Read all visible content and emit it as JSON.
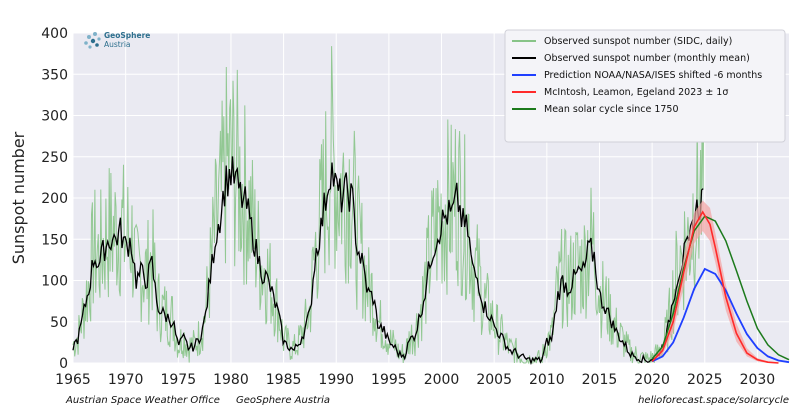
{
  "colors": {
    "background": "#eaeaf2",
    "grid": "#ffffff",
    "daily": "#88c488",
    "monthly": "#000000",
    "noaa": "#1f3fff",
    "mcintosh": "#ff2a2a",
    "mcintosh_band": "#f4a3a3",
    "mean": "#1c7a1c"
  },
  "logo": {
    "icon": "geosphere-logo-icon",
    "line1": "GeoSphere",
    "line2": "Austria"
  },
  "footer": {
    "left1": "Austrian Space Weather Office",
    "left2": "GeoSphere Austria",
    "right": "helioforecast.space/solarcycle"
  },
  "chart_data": {
    "type": "line",
    "title": "",
    "xlabel": "",
    "ylabel": "Sunspot number",
    "xlim": [
      1965,
      2033
    ],
    "ylim": [
      0,
      400
    ],
    "xticks": [
      1965,
      1970,
      1975,
      1980,
      1985,
      1990,
      1995,
      2000,
      2005,
      2010,
      2015,
      2020,
      2025,
      2030
    ],
    "yticks": [
      0,
      50,
      100,
      150,
      200,
      250,
      300,
      350,
      400
    ],
    "grid": true,
    "legend_position": "top-right",
    "legend": [
      "Observed sunspot number (SIDC, daily)",
      "Observed sunspot number (monthly mean)",
      "Prediction NOAA/NASA/ISES shifted -6 months",
      "McIntosh, Leamon, Egeland 2023 ± 1σ",
      "Mean solar cycle since 1750"
    ],
    "series": [
      {
        "name": "Observed sunspot number (monthly mean)",
        "x": [
          1965.0,
          1965.5,
          1966.0,
          1966.5,
          1967.0,
          1967.5,
          1968.0,
          1968.5,
          1969.0,
          1969.5,
          1970.0,
          1970.5,
          1971.0,
          1971.5,
          1972.0,
          1972.5,
          1973.0,
          1973.5,
          1974.0,
          1974.5,
          1975.0,
          1975.5,
          1976.0,
          1976.5,
          1977.0,
          1977.5,
          1978.0,
          1978.5,
          1979.0,
          1979.5,
          1980.0,
          1980.5,
          1981.0,
          1981.5,
          1982.0,
          1982.5,
          1983.0,
          1983.5,
          1984.0,
          1984.5,
          1985.0,
          1985.5,
          1986.0,
          1986.5,
          1987.0,
          1987.5,
          1988.0,
          1988.5,
          1989.0,
          1989.5,
          1990.0,
          1990.5,
          1991.0,
          1991.5,
          1992.0,
          1992.5,
          1993.0,
          1993.5,
          1994.0,
          1994.5,
          1995.0,
          1995.5,
          1996.0,
          1996.5,
          1997.0,
          1997.5,
          1998.0,
          1998.5,
          1999.0,
          1999.5,
          2000.0,
          2000.5,
          2001.0,
          2001.5,
          2002.0,
          2002.5,
          2003.0,
          2003.5,
          2004.0,
          2004.5,
          2005.0,
          2005.5,
          2006.0,
          2006.5,
          2007.0,
          2007.5,
          2008.0,
          2008.5,
          2009.0,
          2009.5,
          2010.0,
          2010.5,
          2011.0,
          2011.5,
          2012.0,
          2012.5,
          2013.0,
          2013.5,
          2014.0,
          2014.5,
          2015.0,
          2015.5,
          2016.0,
          2016.5,
          2017.0,
          2017.5,
          2018.0,
          2018.5,
          2019.0,
          2019.5,
          2020.0,
          2020.5,
          2021.0,
          2021.5,
          2022.0,
          2022.5,
          2023.0,
          2023.5,
          2024.0,
          2024.5,
          2025.0
        ],
        "y": [
          20,
          30,
          60,
          90,
          130,
          120,
          140,
          150,
          150,
          160,
          140,
          150,
          100,
          110,
          100,
          120,
          70,
          60,
          55,
          50,
          20,
          30,
          18,
          20,
          30,
          50,
          100,
          150,
          180,
          220,
          230,
          220,
          200,
          190,
          160,
          130,
          110,
          100,
          80,
          60,
          25,
          20,
          15,
          25,
          40,
          60,
          130,
          160,
          200,
          240,
          210,
          200,
          210,
          200,
          140,
          120,
          85,
          80,
          45,
          40,
          25,
          20,
          10,
          10,
          28,
          35,
          60,
          90,
          130,
          150,
          170,
          180,
          180,
          200,
          170,
          160,
          110,
          100,
          70,
          60,
          45,
          35,
          25,
          15,
          13,
          8,
          5,
          3,
          4,
          3,
          25,
          30,
          80,
          100,
          90,
          100,
          110,
          110,
          140,
          130,
          80,
          70,
          55,
          40,
          30,
          20,
          10,
          8,
          5,
          3,
          5,
          10,
          20,
          40,
          80,
          110,
          130,
          140,
          180,
          190,
          210
        ]
      },
      {
        "name": "Prediction NOAA/NASA/ISES shifted -6 months",
        "x": [
          2020.0,
          2021.0,
          2022.0,
          2023.0,
          2024.0,
          2025.0,
          2026.0,
          2027.0,
          2028.0,
          2029.0,
          2030.0,
          2031.0,
          2032.0,
          2033.0
        ],
        "y": [
          2,
          8,
          25,
          55,
          90,
          114,
          108,
          88,
          60,
          35,
          18,
          8,
          3,
          1
        ]
      },
      {
        "name": "McIntosh, Leamon, Egeland 2023 ± 1σ",
        "x": [
          2020.0,
          2021.0,
          2022.0,
          2023.0,
          2024.0,
          2024.8,
          2025.5,
          2026.0,
          2027.0,
          2028.0,
          2029.0,
          2030.0,
          2031.0,
          2032.0
        ],
        "y": [
          2,
          15,
          50,
          110,
          165,
          183,
          168,
          140,
          80,
          36,
          12,
          4,
          1,
          0
        ],
        "lower": [
          1,
          10,
          38,
          92,
          145,
          160,
          148,
          122,
          64,
          26,
          8,
          2,
          0,
          0
        ],
        "upper": [
          3,
          20,
          62,
          128,
          182,
          197,
          188,
          158,
          95,
          48,
          18,
          6,
          2,
          1
        ]
      },
      {
        "name": "Mean solar cycle since 1750",
        "x": [
          2020.0,
          2021.0,
          2022.0,
          2023.0,
          2024.0,
          2025.0,
          2026.0,
          2027.0,
          2028.0,
          2029.0,
          2030.0,
          2031.0,
          2032.0,
          2033.0
        ],
        "y": [
          5,
          20,
          60,
          115,
          160,
          178,
          172,
          148,
          112,
          75,
          42,
          22,
          10,
          4
        ]
      }
    ]
  }
}
